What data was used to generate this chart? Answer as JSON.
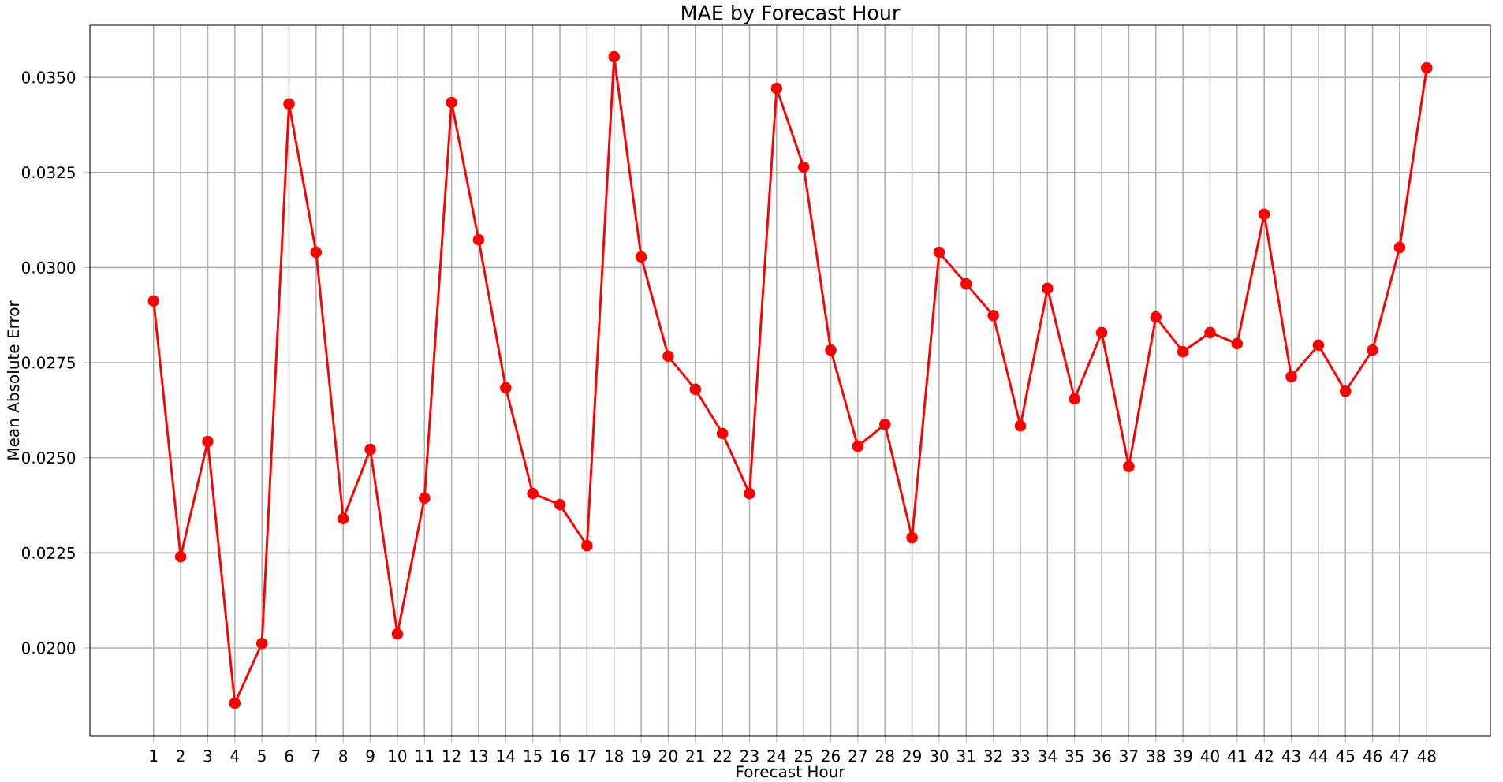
{
  "chart_data": {
    "type": "line",
    "title": "MAE by Forecast Hour",
    "xlabel": "Forecast Hour",
    "ylabel": "Mean Absolute Error",
    "x": [
      1,
      2,
      3,
      4,
      5,
      6,
      7,
      8,
      9,
      10,
      11,
      12,
      13,
      14,
      15,
      16,
      17,
      18,
      19,
      20,
      21,
      22,
      23,
      24,
      25,
      26,
      27,
      28,
      29,
      30,
      31,
      32,
      33,
      34,
      35,
      36,
      37,
      38,
      39,
      40,
      41,
      42,
      43,
      44,
      45,
      46,
      47,
      48
    ],
    "series": [
      {
        "color": "#ff0000",
        "values": [
          0.02912,
          0.0224,
          0.02543,
          0.01855,
          0.02012,
          0.0343,
          0.0304,
          0.0234,
          0.02522,
          0.02037,
          0.02394,
          0.03434,
          0.03073,
          0.02684,
          0.02406,
          0.02377,
          0.02269,
          0.03554,
          0.03028,
          0.02767,
          0.0268,
          0.02564,
          0.02406,
          0.03471,
          0.03264,
          0.02783,
          0.0253,
          0.02588,
          0.0229,
          0.0304,
          0.02957,
          0.02874,
          0.02584,
          0.02945,
          0.02655,
          0.02829,
          0.02477,
          0.0287,
          0.02779,
          0.02829,
          0.028,
          0.0314,
          0.02713,
          0.02796,
          0.02675,
          0.02783,
          0.03053,
          0.03525
        ]
      }
    ],
    "xlim": [
      -1.35,
      50.35
    ],
    "ylim": [
      0.01768,
      0.03637
    ],
    "xticks": [
      1,
      2,
      3,
      4,
      5,
      6,
      7,
      8,
      9,
      10,
      11,
      12,
      13,
      14,
      15,
      16,
      17,
      18,
      19,
      20,
      21,
      22,
      23,
      24,
      25,
      26,
      27,
      28,
      29,
      30,
      31,
      32,
      33,
      34,
      35,
      36,
      37,
      38,
      39,
      40,
      41,
      42,
      43,
      44,
      45,
      46,
      47,
      48
    ],
    "yticks": [
      {
        "value": 0.02,
        "label": "0.0200"
      },
      {
        "value": 0.0225,
        "label": "0.0225"
      },
      {
        "value": 0.025,
        "label": "0.0250"
      },
      {
        "value": 0.0275,
        "label": "0.0275"
      },
      {
        "value": 0.03,
        "label": "0.0300"
      },
      {
        "value": 0.0325,
        "label": "0.0325"
      },
      {
        "value": 0.035,
        "label": "0.0350"
      }
    ],
    "grid": true,
    "marker": "circle",
    "line_style": "solid"
  }
}
